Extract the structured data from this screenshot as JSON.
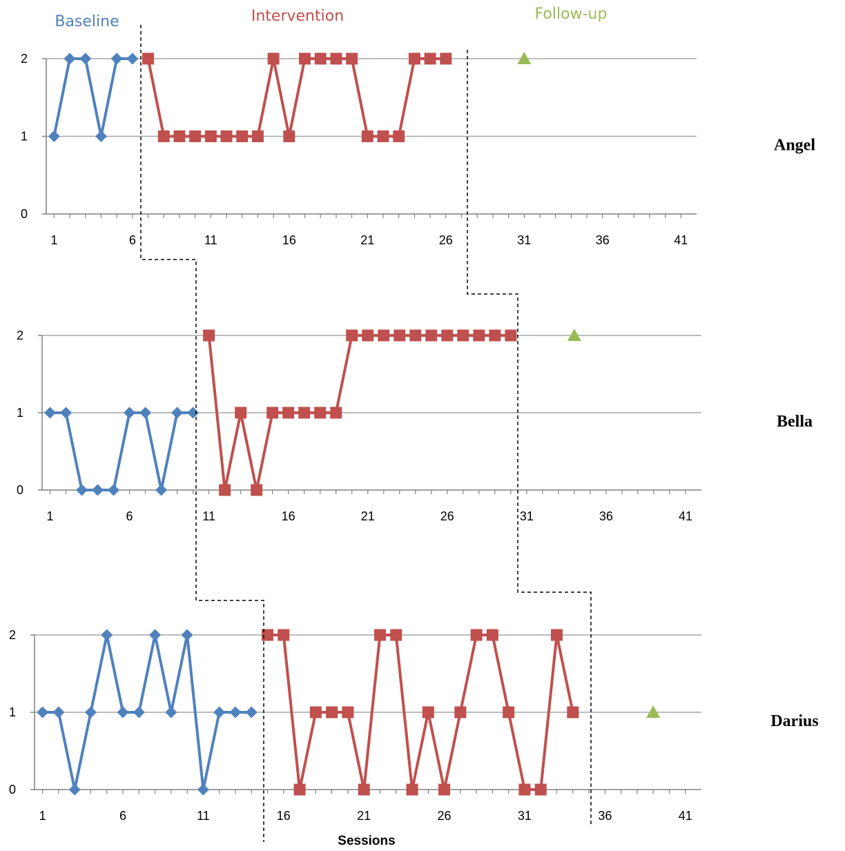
{
  "colors": {
    "baseline": "#4f81bd",
    "intervention": "#c0504d",
    "followup": "#9bbb59",
    "grid": "#a6a6a6",
    "axis": "#808080"
  },
  "phase_labels": {
    "baseline": "Baseline",
    "intervention": "Intervention",
    "followup": "Follow-up"
  },
  "chart_data": {
    "type": "line",
    "xlabel": "Sessions",
    "x_ticks": [
      1,
      6,
      11,
      16,
      21,
      26,
      31,
      36,
      41
    ],
    "y_ticks": [
      0,
      1,
      2
    ],
    "xlim": [
      0.5,
      42
    ],
    "ylim": [
      0,
      2
    ],
    "grid": true,
    "panels": [
      {
        "participant": "Angel",
        "series": [
          {
            "name": "Baseline",
            "marker": "diamond",
            "x": [
              1,
              2,
              3,
              4,
              5,
              6
            ],
            "values": [
              1,
              2,
              2,
              1,
              2,
              2
            ]
          },
          {
            "name": "Intervention",
            "marker": "square",
            "x": [
              7,
              8,
              9,
              10,
              11,
              12,
              13,
              14,
              15,
              16,
              17,
              18,
              19,
              20,
              21,
              22,
              23,
              24,
              25,
              26
            ],
            "values": [
              2,
              1,
              1,
              1,
              1,
              1,
              1,
              1,
              2,
              1,
              2,
              2,
              2,
              2,
              1,
              1,
              1,
              2,
              2,
              2
            ]
          },
          {
            "name": "Follow-up",
            "marker": "triangle",
            "x": [
              31
            ],
            "values": [
              2
            ]
          }
        ]
      },
      {
        "participant": "Bella",
        "series": [
          {
            "name": "Baseline",
            "marker": "diamond",
            "x": [
              1,
              2,
              3,
              4,
              5,
              6,
              7,
              8,
              9,
              10
            ],
            "values": [
              1,
              1,
              0,
              0,
              0,
              1,
              1,
              0,
              1,
              1
            ]
          },
          {
            "name": "Intervention",
            "marker": "square",
            "x": [
              11,
              12,
              13,
              14,
              15,
              16,
              17,
              18,
              19,
              20,
              21,
              22,
              23,
              24,
              25,
              26,
              27,
              28,
              29,
              30
            ],
            "values": [
              2,
              0,
              1,
              0,
              1,
              1,
              1,
              1,
              1,
              2,
              2,
              2,
              2,
              2,
              2,
              2,
              2,
              2,
              2,
              2
            ]
          },
          {
            "name": "Follow-up",
            "marker": "triangle",
            "x": [
              34
            ],
            "values": [
              2
            ]
          }
        ]
      },
      {
        "participant": "Darius",
        "series": [
          {
            "name": "Baseline",
            "marker": "diamond",
            "x": [
              1,
              2,
              3,
              4,
              5,
              6,
              7,
              8,
              9,
              10,
              11,
              12,
              13,
              14
            ],
            "values": [
              1,
              1,
              0,
              1,
              2,
              1,
              1,
              2,
              1,
              2,
              0,
              1,
              1,
              1
            ]
          },
          {
            "name": "Intervention",
            "marker": "square",
            "x": [
              15,
              16,
              17,
              18,
              19,
              20,
              21,
              22,
              23,
              24,
              25,
              26,
              27,
              28,
              29,
              30,
              31,
              32,
              33,
              34
            ],
            "values": [
              2,
              2,
              0,
              1,
              1,
              1,
              0,
              2,
              2,
              0,
              1,
              0,
              1,
              2,
              2,
              1,
              0,
              0,
              2,
              1
            ]
          },
          {
            "name": "Follow-up",
            "marker": "triangle",
            "x": [
              39
            ],
            "values": [
              1
            ]
          }
        ]
      }
    ]
  }
}
